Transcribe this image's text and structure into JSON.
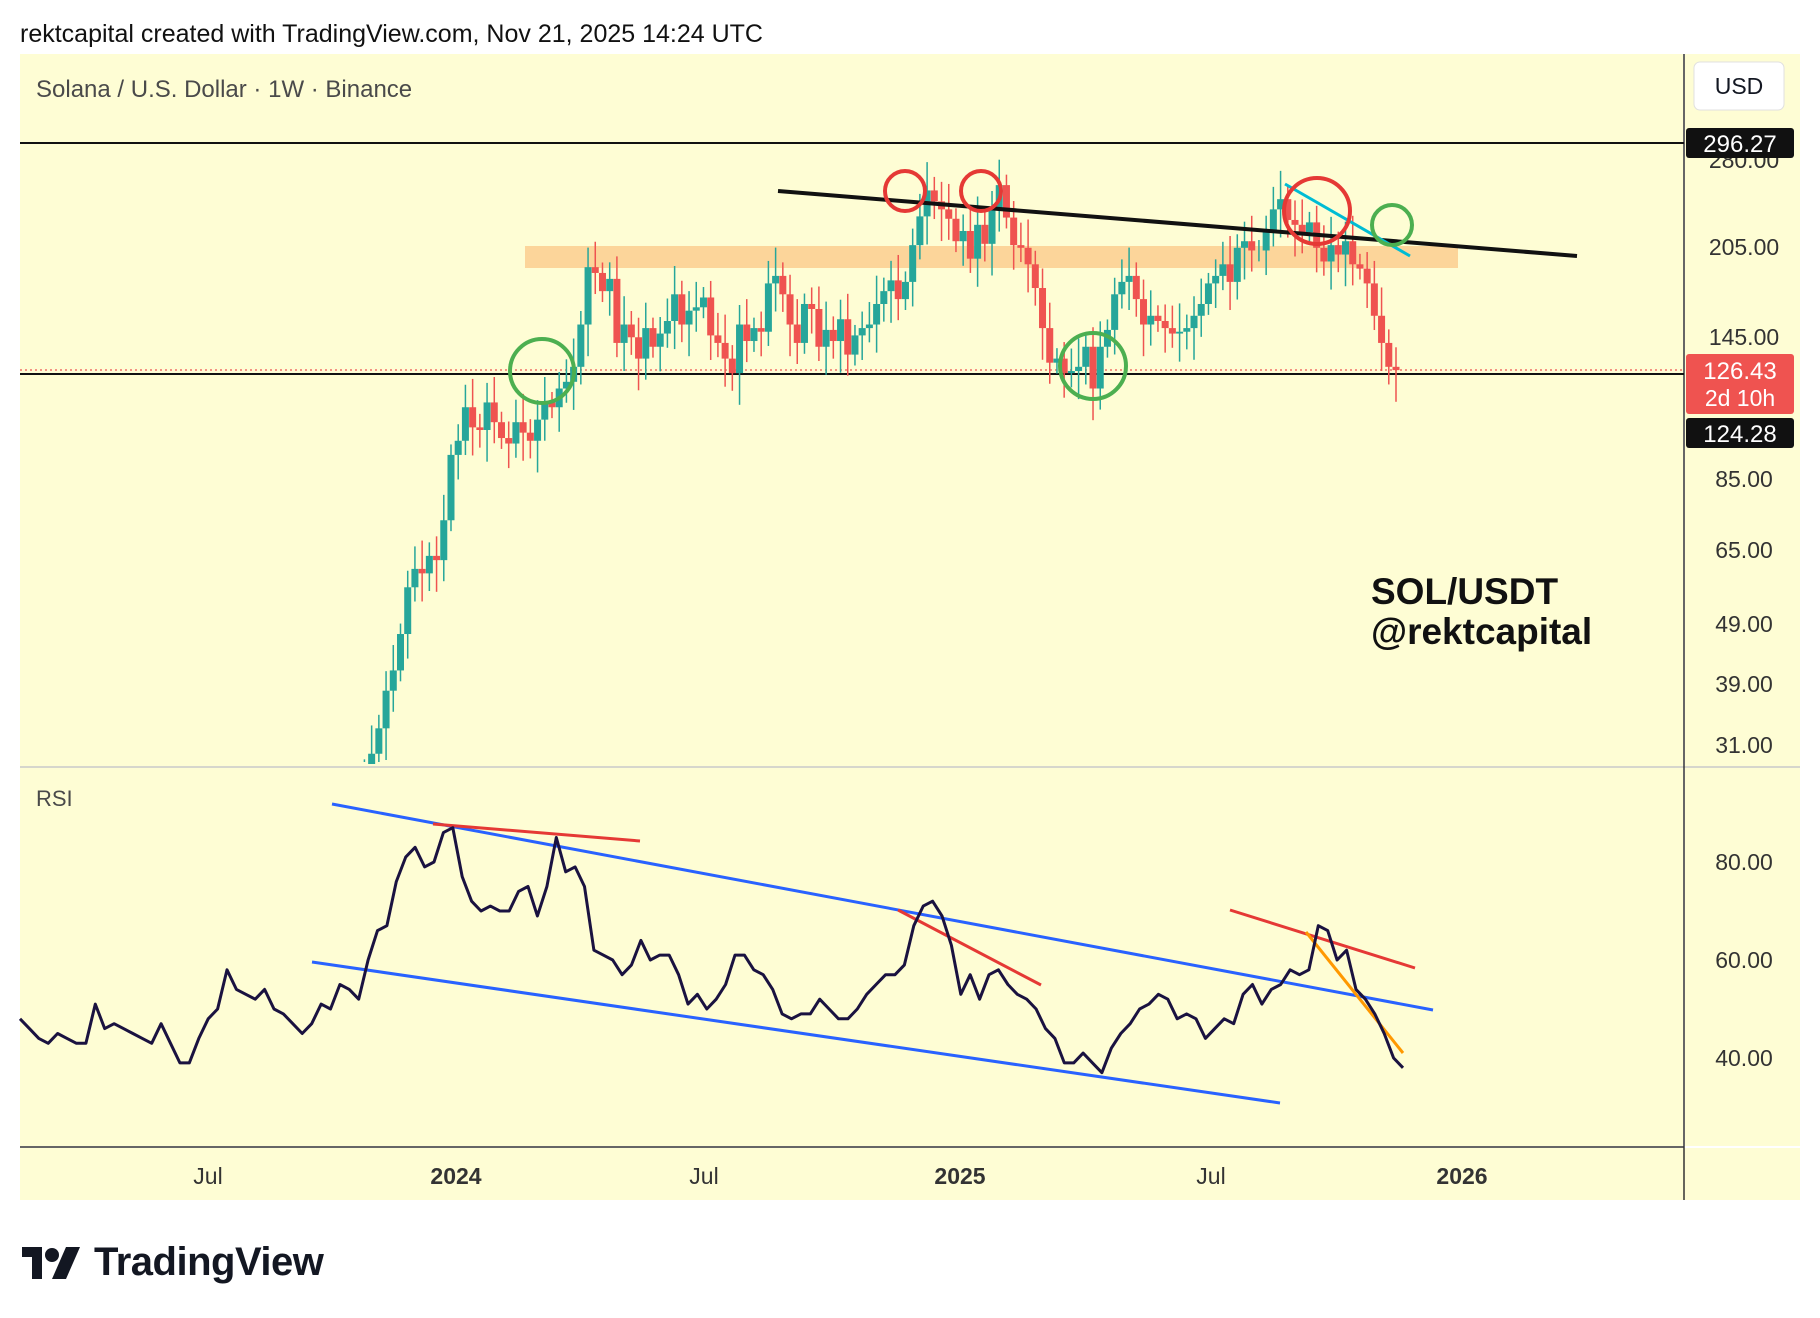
{
  "header": {
    "text": "rektcapital created with TradingView.com, Nov 21, 2025 14:24 UTC"
  },
  "chart": {
    "title": "Solana / U.S. Dollar · 1W · Binance",
    "currency_button": "USD",
    "watermark_line1": "SOL/USDT",
    "watermark_line2": "@rektcapital",
    "rsi_label": "RSI",
    "price_ticks": [
      "280.00",
      "205.00",
      "145.00",
      "85.00",
      "65.00",
      "49.00",
      "39.00",
      "31.00"
    ],
    "rsi_ticks": [
      "80.00",
      "60.00",
      "40.00"
    ],
    "time_ticks": [
      "Jul",
      "2024",
      "Jul",
      "2025",
      "Jul",
      "2026"
    ],
    "badges": {
      "high": "296.27",
      "current": "126.43",
      "countdown": "2d 10h",
      "low_line": "124.28"
    }
  },
  "footer": {
    "brand": "TradingView"
  },
  "colors": {
    "background": "#fefdd4",
    "up": "#26a69a",
    "down": "#ef5350",
    "resistance_band": "#fcd59a",
    "rsi_line": "#1a1240",
    "trend_blue": "#2962ff",
    "trend_red": "#e53935",
    "trend_orange": "#ff9800",
    "circle_green": "#4caf50",
    "circle_red": "#e53935"
  },
  "chart_data": {
    "type": "candlestick",
    "symbol": "SOL/USD",
    "timeframe": "1W",
    "price_scale": "log",
    "y_range": [
      28,
      330
    ],
    "x_range": [
      "2023-02",
      "2026-03"
    ],
    "candles_summary": {
      "ath_high": 296.27,
      "last_close": 126.43,
      "support_line": 124.28,
      "resistance_zone": [
        185,
        210
      ]
    },
    "series": [
      {
        "name": "SOL weekly close",
        "points": [
          [
            "2023-10-30",
            40
          ],
          [
            "2023-11-13",
            58
          ],
          [
            "2023-11-27",
            62
          ],
          [
            "2023-12-11",
            105
          ],
          [
            "2023-12-25",
            110
          ],
          [
            "2024-01-08",
            96
          ],
          [
            "2024-01-22",
            100
          ],
          [
            "2024-02-05",
            108
          ],
          [
            "2024-02-19",
            112
          ],
          [
            "2024-03-04",
            145
          ],
          [
            "2024-03-18",
            185
          ],
          [
            "2024-04-01",
            175
          ],
          [
            "2024-04-15",
            140
          ],
          [
            "2024-05-06",
            150
          ],
          [
            "2024-05-20",
            165
          ],
          [
            "2024-06-10",
            145
          ],
          [
            "2024-07-01",
            140
          ],
          [
            "2024-07-22",
            180
          ],
          [
            "2024-08-12",
            145
          ],
          [
            "2024-09-02",
            135
          ],
          [
            "2024-09-23",
            155
          ],
          [
            "2024-10-14",
            150
          ],
          [
            "2024-10-28",
            165
          ],
          [
            "2024-11-18",
            240
          ],
          [
            "2024-12-09",
            225
          ],
          [
            "2024-12-30",
            195
          ],
          [
            "2025-01-13",
            215
          ],
          [
            "2025-01-20",
            250
          ],
          [
            "2025-02-03",
            200
          ],
          [
            "2025-02-24",
            150
          ],
          [
            "2025-03-17",
            130
          ],
          [
            "2025-04-07",
            110
          ],
          [
            "2025-04-21",
            140
          ],
          [
            "2025-05-12",
            170
          ],
          [
            "2025-06-02",
            160
          ],
          [
            "2025-06-23",
            150
          ],
          [
            "2025-07-14",
            175
          ],
          [
            "2025-08-04",
            175
          ],
          [
            "2025-08-25",
            205
          ],
          [
            "2025-09-08",
            240
          ],
          [
            "2025-09-29",
            220
          ],
          [
            "2025-10-13",
            195
          ],
          [
            "2025-10-27",
            190
          ],
          [
            "2025-11-10",
            140
          ],
          [
            "2025-11-17",
            126.43
          ]
        ]
      },
      {
        "name": "RSI",
        "points": [
          [
            "2023-05-01",
            48
          ],
          [
            "2023-07-03",
            58
          ],
          [
            "2023-08-14",
            39
          ],
          [
            "2023-10-30",
            60
          ],
          [
            "2023-12-04",
            83
          ],
          [
            "2023-12-25",
            87
          ],
          [
            "2024-01-15",
            70
          ],
          [
            "2024-02-12",
            68
          ],
          [
            "2024-03-18",
            85
          ],
          [
            "2024-04-22",
            61
          ],
          [
            "2024-06-10",
            57
          ],
          [
            "2024-07-08",
            62
          ],
          [
            "2024-08-05",
            49
          ],
          [
            "2024-09-09",
            50
          ],
          [
            "2024-10-14",
            56
          ],
          [
            "2024-11-18",
            72
          ],
          [
            "2024-12-23",
            53
          ],
          [
            "2025-01-20",
            63
          ],
          [
            "2025-02-10",
            48
          ],
          [
            "2025-03-17",
            40
          ],
          [
            "2025-04-07",
            37
          ],
          [
            "2025-05-05",
            55
          ],
          [
            "2025-06-16",
            48
          ],
          [
            "2025-07-21",
            58
          ],
          [
            "2025-08-11",
            55
          ],
          [
            "2025-09-15",
            67
          ],
          [
            "2025-10-13",
            53
          ],
          [
            "2025-11-10",
            40
          ],
          [
            "2025-11-17",
            38
          ]
        ]
      }
    ]
  }
}
